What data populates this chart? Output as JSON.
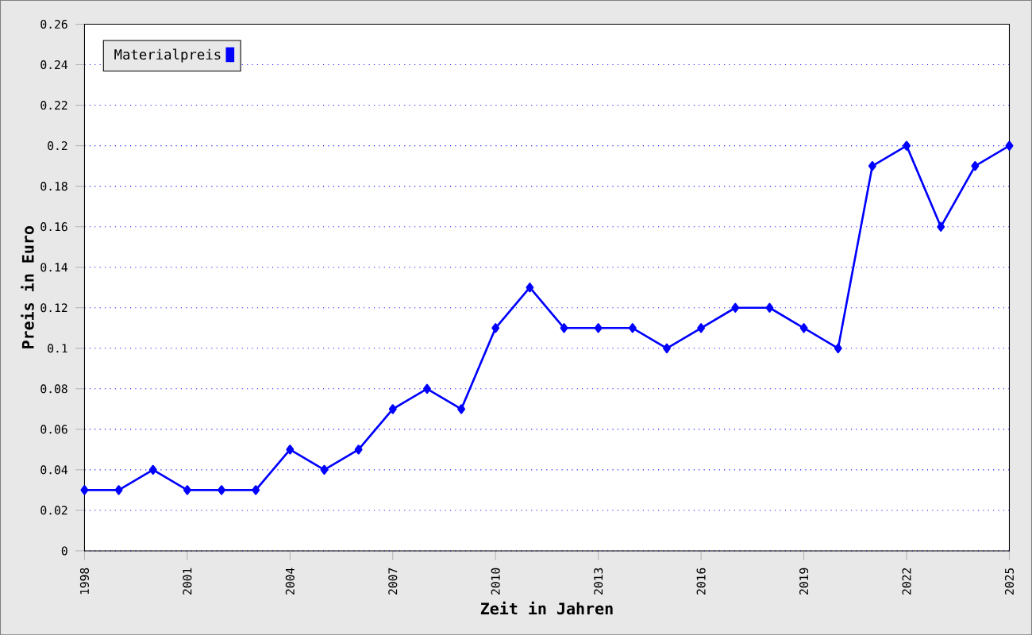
{
  "chart_data": {
    "type": "line",
    "xlabel": "Zeit in Jahren",
    "ylabel": "Preis in Euro",
    "x": [
      1998,
      1999,
      2000,
      2001,
      2002,
      2003,
      2004,
      2005,
      2006,
      2007,
      2008,
      2009,
      2010,
      2011,
      2012,
      2013,
      2014,
      2015,
      2016,
      2017,
      2018,
      2019,
      2020,
      2021,
      2022,
      2023,
      2024,
      2025
    ],
    "series": [
      {
        "name": "Materialpreis",
        "color": "#0000ff",
        "values": [
          0.03,
          0.03,
          0.04,
          0.03,
          0.03,
          0.03,
          0.05,
          0.04,
          0.05,
          0.07,
          0.08,
          0.07,
          0.11,
          0.13,
          0.11,
          0.11,
          0.11,
          0.1,
          0.11,
          0.12,
          0.12,
          0.11,
          0.1,
          0.19,
          0.2,
          0.16,
          0.19,
          0.2
        ]
      }
    ],
    "xlim": [
      1998,
      2025
    ],
    "xticks": [
      1998,
      2001,
      2004,
      2007,
      2010,
      2013,
      2016,
      2019,
      2022,
      2025
    ],
    "ylim": [
      0,
      0.26
    ],
    "yticks": [
      0,
      0.02,
      0.04,
      0.06,
      0.08,
      0.1,
      0.12,
      0.14,
      0.16,
      0.18,
      0.2,
      0.22,
      0.24,
      0.26
    ],
    "grid": "y",
    "legend": "top left",
    "marker": "diamond",
    "line_style": "solid"
  }
}
